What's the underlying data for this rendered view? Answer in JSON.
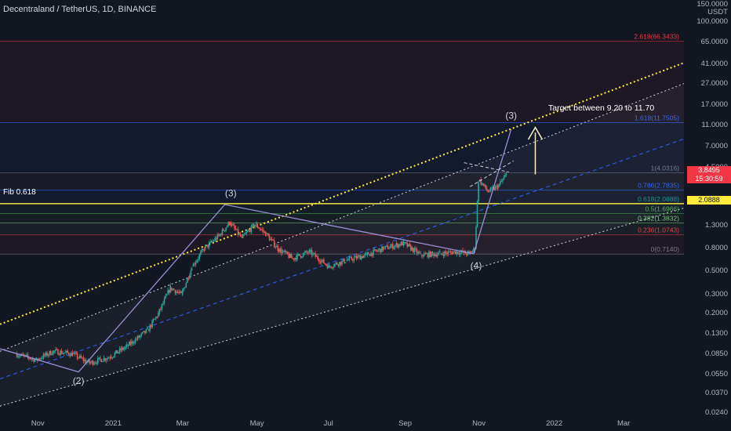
{
  "header": {
    "symbol_title": "Decentraland / TetherUS, 1D, BINANCE"
  },
  "price_axis": {
    "unit_top": "150.0000",
    "unit": "USDT",
    "ticks": [
      "100.0000",
      "65.0000",
      "41.0000",
      "27.0000",
      "17.0000",
      "11.0000",
      "7.0000",
      "4.5000",
      "1.3000",
      "0.8000",
      "0.5000",
      "0.3000",
      "0.2000",
      "0.1300",
      "0.0850",
      "0.0550",
      "0.0370",
      "0.0240"
    ],
    "current_price": "3.8495",
    "countdown": "15:30:59",
    "fib_price": "2.0888"
  },
  "time_axis": {
    "ticks": [
      "Nov",
      "2021",
      "Mar",
      "May",
      "Jul",
      "Sep",
      "Nov",
      "2022",
      "Mar"
    ]
  },
  "fib_label_left": "Fib 0.618",
  "target_text": "Target between 9.20 to 11.70",
  "fib_levels": [
    {
      "label": "2.618(66.3433)",
      "value": 66.3433,
      "color": "#f23645"
    },
    {
      "label": "1.618(11.7505)",
      "value": 11.7505,
      "color": "#2962ff"
    },
    {
      "label": "1(4.0316)",
      "value": 4.0316,
      "color": "#787b86"
    },
    {
      "label": "0.786(2.7835)",
      "value": 2.7835,
      "color": "#2962ff"
    },
    {
      "label": "0.618(2.0888)",
      "value": 2.0888,
      "color": "#089981"
    },
    {
      "label": "0.5(1.6966)",
      "value": 1.6966,
      "color": "#4caf50"
    },
    {
      "label": "0.382(1.3832)",
      "value": 1.3832,
      "color": "#81c784"
    },
    {
      "label": "0.236(1.0743)",
      "value": 1.0743,
      "color": "#f23645"
    },
    {
      "label": "0(0.7140)",
      "value": 0.714,
      "color": "#787b86"
    }
  ],
  "wave_labels": [
    {
      "label": "(2)",
      "date": "2020-12-05",
      "price": 0.045
    },
    {
      "label": "(3)",
      "date": "2021-04-10",
      "price": 2.45
    },
    {
      "label": "(4)",
      "date": "2021-10-30",
      "price": 0.52
    },
    {
      "label": "(3)",
      "date": "2021-11-28",
      "price": 12.8
    }
  ],
  "colors": {
    "background": "#131722",
    "up": "#26a69a",
    "down": "#ef5350",
    "wave": "#9c8fd6",
    "channel_mid": "#2962ff",
    "dotted": "#ffeb3b",
    "fib_highlight": "#ffeb3b"
  },
  "chart_data": {
    "type": "line",
    "title": "Decentraland / TetherUS, 1D, BINANCE",
    "y_scale": "log",
    "ylim": [
      0.023,
      160
    ],
    "xlim": [
      "2020-10-01",
      "2022-04-20"
    ],
    "x": [
      "2020-10-15",
      "2020-11-01",
      "2020-11-15",
      "2020-12-01",
      "2020-12-15",
      "2021-01-01",
      "2021-01-15",
      "2021-02-01",
      "2021-02-10",
      "2021-02-20",
      "2021-03-01",
      "2021-03-10",
      "2021-03-20",
      "2021-04-01",
      "2021-04-10",
      "2021-04-20",
      "2021-05-01",
      "2021-05-10",
      "2021-05-20",
      "2021-06-01",
      "2021-06-15",
      "2021-07-01",
      "2021-07-15",
      "2021-08-01",
      "2021-08-15",
      "2021-09-01",
      "2021-09-15",
      "2021-10-01",
      "2021-10-15",
      "2021-10-25",
      "2021-10-30",
      "2021-11-02",
      "2021-11-10",
      "2021-11-18",
      "2021-11-25"
    ],
    "series": [
      {
        "values": [
          0.085,
          0.075,
          0.09,
          0.085,
          0.07,
          0.08,
          0.1,
          0.14,
          0.2,
          0.35,
          0.3,
          0.55,
          0.8,
          1.05,
          1.4,
          1.0,
          1.35,
          1.1,
          0.8,
          0.65,
          0.75,
          0.55,
          0.62,
          0.7,
          0.8,
          0.9,
          0.7,
          0.72,
          0.75,
          0.72,
          0.8,
          3.5,
          2.7,
          3.0,
          3.85
        ]
      }
    ]
  }
}
